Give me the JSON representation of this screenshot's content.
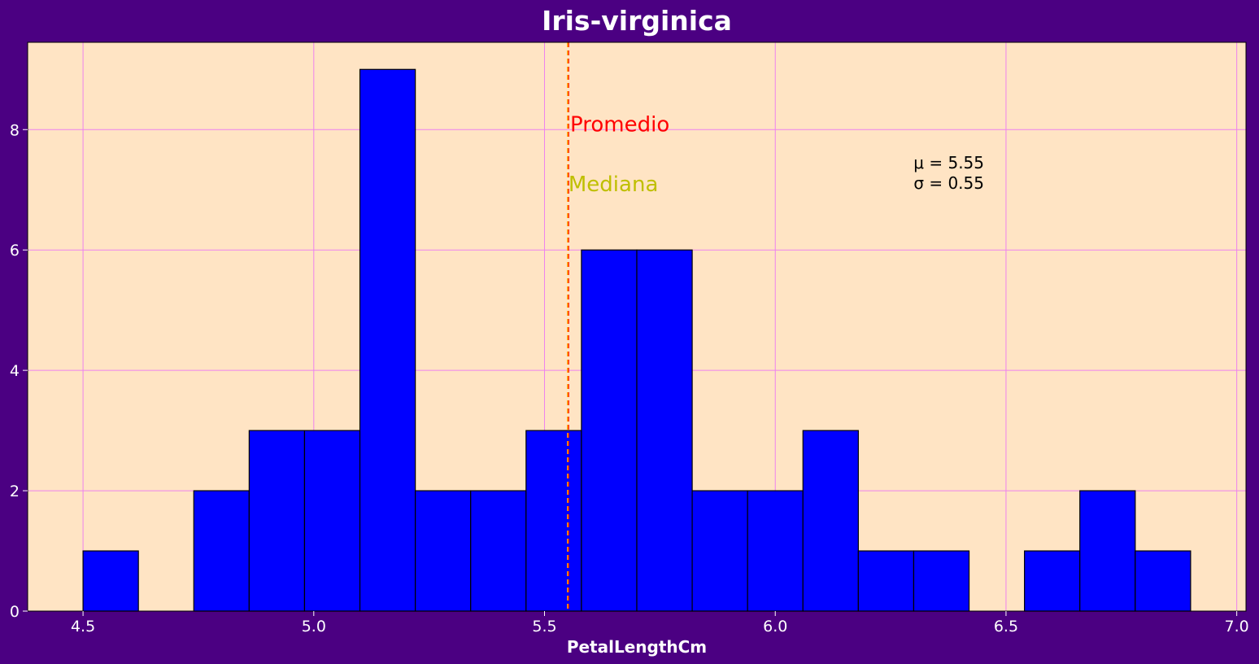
{
  "chart_data": {
    "type": "bar",
    "title": "Iris-virginica",
    "xlabel": "PetalLengthCm",
    "ylabel": "",
    "xlim": [
      4.38,
      7.02
    ],
    "ylim": [
      0,
      9.45
    ],
    "xticks": [
      4.5,
      5.0,
      5.5,
      6.0,
      6.5,
      7.0
    ],
    "xtick_labels": [
      "4.5",
      "5.0",
      "5.5",
      "6.0",
      "6.5",
      "7.0"
    ],
    "yticks": [
      0,
      2,
      4,
      6,
      8
    ],
    "ytick_labels": [
      "0",
      "2",
      "4",
      "6",
      "8"
    ],
    "grid": true,
    "bin_edges": [
      4.5,
      4.62,
      4.74,
      4.86,
      4.98,
      5.1,
      5.22,
      5.34,
      5.46,
      5.58,
      5.7,
      5.82,
      5.94,
      6.06,
      6.18,
      6.3,
      6.42,
      6.54,
      6.66,
      6.78,
      6.9
    ],
    "values": [
      1,
      0,
      2,
      3,
      3,
      9,
      2,
      2,
      3,
      6,
      6,
      2,
      2,
      3,
      1,
      1,
      0,
      1,
      2,
      1
    ],
    "mean": 5.552,
    "median": 5.55,
    "annotations": {
      "mean_label": "Promedio",
      "median_label": "Mediana",
      "mu_text": "μ = 5.55",
      "sigma_text": "σ = 0.55"
    },
    "colors": {
      "figure_bg": "#4b0082",
      "axes_bg": "#ffe4c4",
      "bar": "#0000ff",
      "bar_edge": "#000000",
      "grid": "#ee82ee",
      "mean_line": "#ff0000",
      "median_line": "#ffa500",
      "mean_label": "#ff0000",
      "median_label": "#bfbf00",
      "title": "#ffffff",
      "tick_label": "#ffffff",
      "stats_text": "#000000"
    }
  }
}
